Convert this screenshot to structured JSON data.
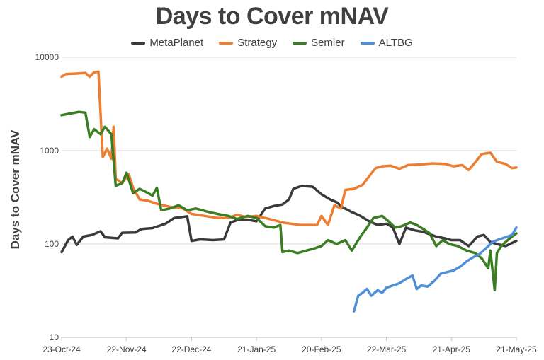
{
  "chart_data": {
    "type": "line",
    "title": "Days to Cover mNAV",
    "ylabel": "Days to Cover mNAV",
    "xlabel": "",
    "y_scale": "log",
    "ylim": [
      10,
      10000
    ],
    "y_ticks": [
      10,
      100,
      1000,
      10000
    ],
    "y_tick_labels": [
      "10",
      "100",
      "1000",
      "10000"
    ],
    "xlim": [
      "2024-10-23",
      "2025-05-21"
    ],
    "x_ticks": [
      "2024-10-23",
      "2024-11-22",
      "2024-12-22",
      "2025-01-21",
      "2025-02-20",
      "2025-03-22",
      "2025-04-21",
      "2025-05-21"
    ],
    "x_tick_labels": [
      "23-Oct-24",
      "22-Nov-24",
      "22-Dec-24",
      "21-Jan-25",
      "20-Feb-25",
      "22-Mar-25",
      "21-Apr-25",
      "21-May-25"
    ],
    "grid": "horizontal",
    "legend_position": "top",
    "series": [
      {
        "name": "MetaPlanet",
        "color": "#3a3a3a",
        "points": [
          [
            "2024-10-23",
            82
          ],
          [
            "2024-10-26",
            110
          ],
          [
            "2024-10-28",
            120
          ],
          [
            "2024-10-30",
            98
          ],
          [
            "2024-11-02",
            120
          ],
          [
            "2024-11-06",
            125
          ],
          [
            "2024-11-10",
            137
          ],
          [
            "2024-11-12",
            118
          ],
          [
            "2024-11-18",
            115
          ],
          [
            "2024-11-20",
            132
          ],
          [
            "2024-11-26",
            133
          ],
          [
            "2024-11-29",
            145
          ],
          [
            "2024-12-04",
            148
          ],
          [
            "2024-12-10",
            165
          ],
          [
            "2024-12-14",
            190
          ],
          [
            "2024-12-18",
            195
          ],
          [
            "2024-12-20",
            198
          ],
          [
            "2024-12-22",
            108
          ],
          [
            "2024-12-26",
            112
          ],
          [
            "2025-01-01",
            110
          ],
          [
            "2025-01-06",
            112
          ],
          [
            "2025-01-09",
            170
          ],
          [
            "2025-01-12",
            180
          ],
          [
            "2025-01-18",
            180
          ],
          [
            "2025-01-21",
            175
          ],
          [
            "2025-01-25",
            240
          ],
          [
            "2025-01-29",
            255
          ],
          [
            "2025-02-02",
            265
          ],
          [
            "2025-02-05",
            300
          ],
          [
            "2025-02-07",
            390
          ],
          [
            "2025-02-11",
            420
          ],
          [
            "2025-02-16",
            410
          ],
          [
            "2025-02-20",
            340
          ],
          [
            "2025-02-24",
            300
          ],
          [
            "2025-02-27",
            280
          ],
          [
            "2025-03-02",
            245
          ],
          [
            "2025-03-06",
            220
          ],
          [
            "2025-03-10",
            200
          ],
          [
            "2025-03-14",
            175
          ],
          [
            "2025-03-18",
            160
          ],
          [
            "2025-03-22",
            165
          ],
          [
            "2025-03-25",
            150
          ],
          [
            "2025-03-28",
            100
          ],
          [
            "2025-03-31",
            150
          ],
          [
            "2025-04-04",
            140
          ],
          [
            "2025-04-08",
            135
          ],
          [
            "2025-04-14",
            120
          ],
          [
            "2025-04-18",
            115
          ],
          [
            "2025-04-21",
            110
          ],
          [
            "2025-04-25",
            110
          ],
          [
            "2025-04-29",
            95
          ],
          [
            "2025-05-03",
            120
          ],
          [
            "2025-05-06",
            125
          ],
          [
            "2025-05-09",
            105
          ],
          [
            "2025-05-12",
            100
          ],
          [
            "2025-05-16",
            95
          ],
          [
            "2025-05-18",
            100
          ],
          [
            "2025-05-21",
            108
          ]
        ]
      },
      {
        "name": "Strategy",
        "color": "#ed7d31",
        "points": [
          [
            "2024-10-23",
            6200
          ],
          [
            "2024-10-25",
            6600
          ],
          [
            "2024-10-30",
            6700
          ],
          [
            "2024-11-03",
            6800
          ],
          [
            "2024-11-05",
            6200
          ],
          [
            "2024-11-07",
            6900
          ],
          [
            "2024-11-09",
            7000
          ],
          [
            "2024-11-11",
            850
          ],
          [
            "2024-11-13",
            1050
          ],
          [
            "2024-11-15",
            820
          ],
          [
            "2024-11-16",
            1800
          ],
          [
            "2024-11-17",
            500
          ],
          [
            "2024-11-20",
            450
          ],
          [
            "2024-11-23",
            560
          ],
          [
            "2024-11-25",
            400
          ],
          [
            "2024-11-28",
            300
          ],
          [
            "2024-12-02",
            290
          ],
          [
            "2024-12-06",
            270
          ],
          [
            "2024-12-12",
            250
          ],
          [
            "2024-12-18",
            240
          ],
          [
            "2024-12-22",
            210
          ],
          [
            "2024-12-28",
            200
          ],
          [
            "2025-01-03",
            190
          ],
          [
            "2025-01-08",
            190
          ],
          [
            "2025-01-12",
            205
          ],
          [
            "2025-01-16",
            195
          ],
          [
            "2025-01-21",
            200
          ],
          [
            "2025-01-27",
            185
          ],
          [
            "2025-02-02",
            170
          ],
          [
            "2025-02-06",
            165
          ],
          [
            "2025-02-10",
            160
          ],
          [
            "2025-02-14",
            160
          ],
          [
            "2025-02-18",
            160
          ],
          [
            "2025-02-20",
            200
          ],
          [
            "2025-02-23",
            160
          ],
          [
            "2025-02-26",
            260
          ],
          [
            "2025-03-01",
            240
          ],
          [
            "2025-03-03",
            380
          ],
          [
            "2025-03-07",
            390
          ],
          [
            "2025-03-11",
            430
          ],
          [
            "2025-03-15",
            570
          ],
          [
            "2025-03-17",
            650
          ],
          [
            "2025-03-20",
            680
          ],
          [
            "2025-03-24",
            690
          ],
          [
            "2025-03-28",
            640
          ],
          [
            "2025-04-01",
            700
          ],
          [
            "2025-04-07",
            710
          ],
          [
            "2025-04-12",
            730
          ],
          [
            "2025-04-18",
            720
          ],
          [
            "2025-04-22",
            680
          ],
          [
            "2025-04-26",
            700
          ],
          [
            "2025-04-29",
            620
          ],
          [
            "2025-05-02",
            750
          ],
          [
            "2025-05-05",
            920
          ],
          [
            "2025-05-09",
            950
          ],
          [
            "2025-05-12",
            760
          ],
          [
            "2025-05-16",
            720
          ],
          [
            "2025-05-19",
            650
          ],
          [
            "2025-05-21",
            660
          ]
        ]
      },
      {
        "name": "Semler",
        "color": "#3a7d22",
        "points": [
          [
            "2024-10-23",
            2400
          ],
          [
            "2024-10-27",
            2500
          ],
          [
            "2024-10-31",
            2600
          ],
          [
            "2024-11-03",
            2550
          ],
          [
            "2024-11-05",
            1400
          ],
          [
            "2024-11-07",
            1700
          ],
          [
            "2024-11-10",
            1500
          ],
          [
            "2024-11-12",
            1800
          ],
          [
            "2024-11-15",
            1500
          ],
          [
            "2024-11-17",
            420
          ],
          [
            "2024-11-20",
            450
          ],
          [
            "2024-11-22",
            580
          ],
          [
            "2024-11-25",
            350
          ],
          [
            "2024-11-28",
            390
          ],
          [
            "2024-12-01",
            360
          ],
          [
            "2024-12-04",
            330
          ],
          [
            "2024-12-06",
            400
          ],
          [
            "2024-12-08",
            230
          ],
          [
            "2024-12-12",
            240
          ],
          [
            "2024-12-16",
            260
          ],
          [
            "2024-12-20",
            230
          ],
          [
            "2024-12-24",
            240
          ],
          [
            "2024-12-30",
            220
          ],
          [
            "2025-01-03",
            210
          ],
          [
            "2025-01-08",
            200
          ],
          [
            "2025-01-12",
            185
          ],
          [
            "2025-01-17",
            200
          ],
          [
            "2025-01-21",
            190
          ],
          [
            "2025-01-25",
            155
          ],
          [
            "2025-01-29",
            150
          ],
          [
            "2025-02-01",
            160
          ],
          [
            "2025-02-02",
            82
          ],
          [
            "2025-02-05",
            85
          ],
          [
            "2025-02-09",
            80
          ],
          [
            "2025-02-13",
            85
          ],
          [
            "2025-02-17",
            90
          ],
          [
            "2025-02-20",
            95
          ],
          [
            "2025-02-23",
            110
          ],
          [
            "2025-02-27",
            100
          ],
          [
            "2025-03-03",
            110
          ],
          [
            "2025-03-06",
            85
          ],
          [
            "2025-03-10",
            120
          ],
          [
            "2025-03-13",
            150
          ],
          [
            "2025-03-16",
            190
          ],
          [
            "2025-03-20",
            200
          ],
          [
            "2025-03-23",
            175
          ],
          [
            "2025-03-26",
            150
          ],
          [
            "2025-03-29",
            155
          ],
          [
            "2025-04-02",
            170
          ],
          [
            "2025-04-05",
            160
          ],
          [
            "2025-04-08",
            145
          ],
          [
            "2025-04-11",
            130
          ],
          [
            "2025-04-14",
            95
          ],
          [
            "2025-04-17",
            110
          ],
          [
            "2025-04-20",
            100
          ],
          [
            "2025-04-24",
            95
          ],
          [
            "2025-04-28",
            85
          ],
          [
            "2025-05-02",
            80
          ],
          [
            "2025-05-05",
            70
          ],
          [
            "2025-05-08",
            55
          ],
          [
            "2025-05-09",
            85
          ],
          [
            "2025-05-11",
            32
          ],
          [
            "2025-05-12",
            80
          ],
          [
            "2025-05-14",
            95
          ],
          [
            "2025-05-17",
            110
          ],
          [
            "2025-05-19",
            120
          ],
          [
            "2025-05-21",
            130
          ]
        ]
      },
      {
        "name": "ALTBG",
        "color": "#4e8fd6",
        "points": [
          [
            "2025-03-07",
            19
          ],
          [
            "2025-03-09",
            28
          ],
          [
            "2025-03-11",
            30
          ],
          [
            "2025-03-13",
            33
          ],
          [
            "2025-03-15",
            28
          ],
          [
            "2025-03-18",
            32
          ],
          [
            "2025-03-20",
            30
          ],
          [
            "2025-03-22",
            34
          ],
          [
            "2025-03-25",
            36
          ],
          [
            "2025-03-28",
            38
          ],
          [
            "2025-03-31",
            42
          ],
          [
            "2025-04-03",
            46
          ],
          [
            "2025-04-05",
            33
          ],
          [
            "2025-04-07",
            36
          ],
          [
            "2025-04-10",
            35
          ],
          [
            "2025-04-13",
            40
          ],
          [
            "2025-04-16",
            48
          ],
          [
            "2025-04-19",
            50
          ],
          [
            "2025-04-22",
            52
          ],
          [
            "2025-04-25",
            57
          ],
          [
            "2025-04-28",
            65
          ],
          [
            "2025-05-01",
            72
          ],
          [
            "2025-05-04",
            78
          ],
          [
            "2025-05-07",
            90
          ],
          [
            "2025-05-10",
            105
          ],
          [
            "2025-05-13",
            112
          ],
          [
            "2025-05-16",
            118
          ],
          [
            "2025-05-19",
            125
          ],
          [
            "2025-05-21",
            150
          ]
        ]
      }
    ]
  }
}
